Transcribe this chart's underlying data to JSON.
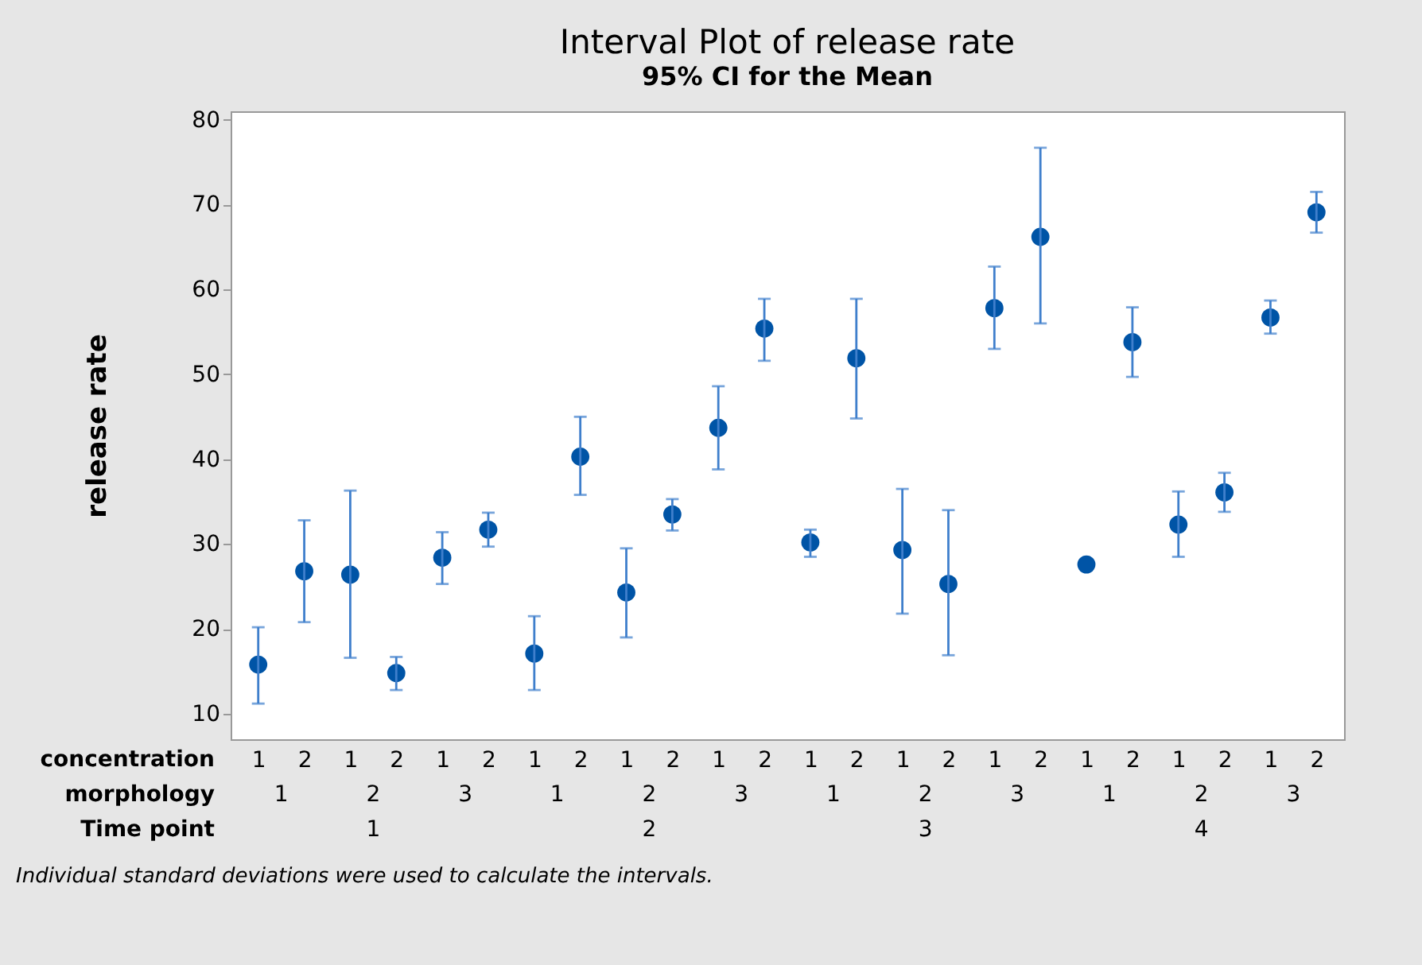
{
  "chart_data": {
    "type": "scatter",
    "title": "Interval Plot of release rate",
    "subtitle": "95% CI for the Mean",
    "ylabel": "release rate",
    "categories": [
      "1",
      "2",
      "1",
      "2",
      "1",
      "2",
      "1",
      "2",
      "1",
      "2",
      "1",
      "2",
      "1",
      "2",
      "1",
      "2",
      "1",
      "2",
      "1",
      "2",
      "1",
      "2",
      "1",
      "2"
    ],
    "values": [
      15.8,
      26.8,
      26.4,
      14.8,
      28.4,
      31.7,
      17.1,
      40.3,
      24.3,
      33.5,
      43.7,
      55.4,
      30.2,
      51.9,
      29.3,
      25.3,
      57.8,
      66.2,
      27.6,
      53.8,
      32.3,
      36.1,
      56.7,
      69.1
    ],
    "errors": [
      [
        11.2,
        20.2
      ],
      [
        20.8,
        32.8
      ],
      [
        16.6,
        36.3
      ],
      [
        12.8,
        16.7
      ],
      [
        25.3,
        31.4
      ],
      [
        29.7,
        33.7
      ],
      [
        12.8,
        21.5
      ],
      [
        35.8,
        45.0
      ],
      [
        19.0,
        29.5
      ],
      [
        31.6,
        35.3
      ],
      [
        38.8,
        48.6
      ],
      [
        51.6,
        58.9
      ],
      [
        28.5,
        31.7
      ],
      [
        44.8,
        58.9
      ],
      [
        21.8,
        36.5
      ],
      [
        16.9,
        34.0
      ],
      [
        53.0,
        62.7
      ],
      [
        56.0,
        76.7
      ],
      null,
      [
        49.7,
        57.9
      ],
      [
        28.5,
        36.2
      ],
      [
        33.8,
        38.4
      ],
      [
        54.8,
        58.7
      ],
      [
        66.7,
        71.5
      ]
    ],
    "color": "#0054a6",
    "marker": "circle",
    "grid": false,
    "ylim": [
      7,
      81
    ],
    "yticks": [
      10,
      20,
      30,
      40,
      50,
      60,
      70,
      80
    ],
    "annotations": [
      "Individual standard deviations were used to calculate the intervals.",
      "concentration",
      "morphology",
      "Time point",
      "1",
      "2",
      "3",
      "1",
      "2",
      "3",
      "1",
      "2",
      "3",
      "1",
      "2",
      "3",
      "1",
      "2",
      "3",
      "4"
    ]
  }
}
